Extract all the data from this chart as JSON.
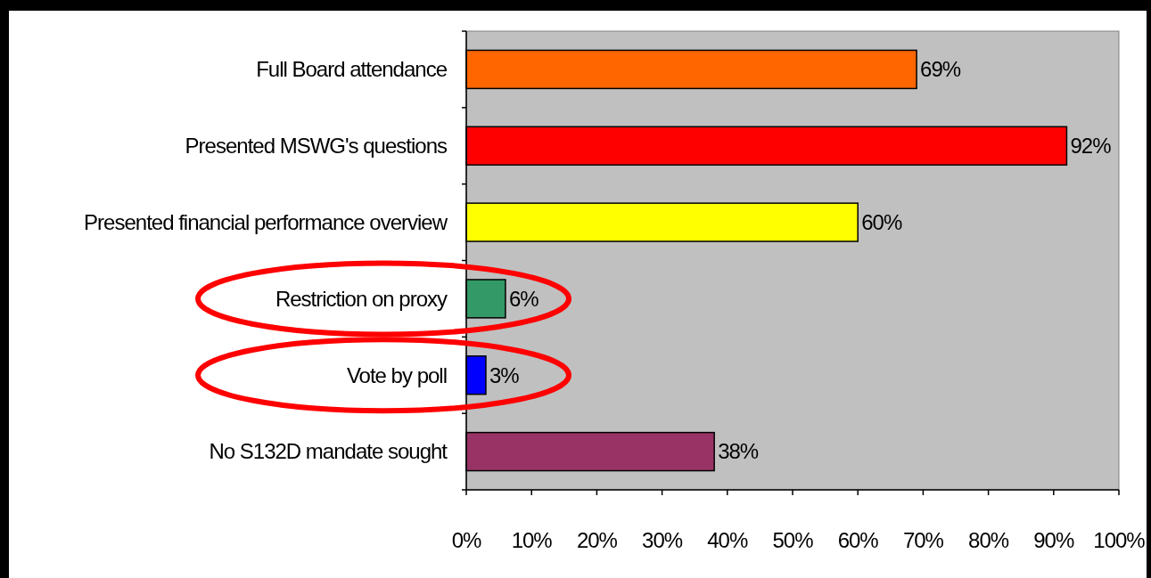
{
  "chart_data": {
    "type": "bar",
    "orientation": "horizontal",
    "categories": [
      "Full Board attendance",
      "Presented MSWG's questions",
      "Presented financial performance overview",
      "Restriction on proxy",
      "Vote by poll",
      "No S132D mandate sought"
    ],
    "values": [
      69,
      92,
      60,
      6,
      3,
      38
    ],
    "colors": [
      "#ff6600",
      "#ff0000",
      "#ffff00",
      "#339966",
      "#0000ff",
      "#993366"
    ],
    "value_labels": [
      "69%",
      "92%",
      "60%",
      "6%",
      "3%",
      "38%"
    ],
    "xlim": [
      0,
      100
    ],
    "xticks": [
      {
        "value": 0,
        "label": "0%"
      },
      {
        "value": 10,
        "label": "10%"
      },
      {
        "value": 20,
        "label": "20%"
      },
      {
        "value": 30,
        "label": "30%"
      },
      {
        "value": 40,
        "label": "40%"
      },
      {
        "value": 50,
        "label": "50%"
      },
      {
        "value": 60,
        "label": "60%"
      },
      {
        "value": 70,
        "label": "70%"
      },
      {
        "value": 80,
        "label": "80%"
      },
      {
        "value": 90,
        "label": "90%"
      },
      {
        "value": 100,
        "label": "100%"
      }
    ],
    "grid": false
  }
}
